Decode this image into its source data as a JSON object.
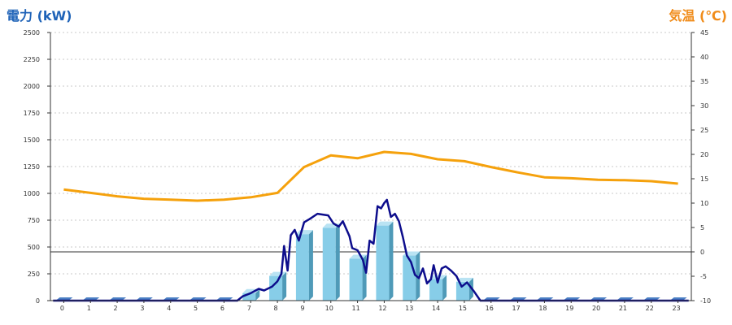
{
  "chart_data": {
    "type": "bar",
    "left_axis_title": "電力 (kW)",
    "right_axis_title": "気温 (℃)",
    "colors": {
      "left_title": "#1f63b8",
      "right_title": "#f08c1a",
      "bar_front": "#87cde8",
      "bar_side": "#4f9ab8",
      "bar_top": "#b9e3f3",
      "small_bar": "#4a7fc4",
      "power_line": "#0d0d8c",
      "temp_line": "#f5a10c",
      "grid": "#c8c8c8",
      "zero_line": "#333333"
    },
    "categories": [
      "0",
      "1",
      "2",
      "3",
      "4",
      "5",
      "6",
      "7",
      "8",
      "9",
      "10",
      "11",
      "12",
      "13",
      "14",
      "15",
      "16",
      "17",
      "18",
      "19",
      "20",
      "21",
      "22",
      "23"
    ],
    "y_left": {
      "min": 0,
      "max": 2500,
      "ticks": [
        "0",
        "250",
        "500",
        "750",
        "1000",
        "1250",
        "1500",
        "1750",
        "2000",
        "2250",
        "2500"
      ]
    },
    "y_right": {
      "min": -10,
      "max": 45,
      "ticks": [
        "-10",
        "-5",
        "0",
        "5",
        "10",
        "15",
        "20",
        "25",
        "30",
        "35",
        "40",
        "45"
      ]
    },
    "grid": true,
    "hourly_power_bars": [
      0,
      0,
      0,
      0,
      0,
      0,
      0,
      70,
      230,
      620,
      680,
      390,
      700,
      420,
      200,
      175,
      0,
      0,
      0,
      0,
      0,
      0,
      0,
      0
    ],
    "temperature_line": [
      {
        "x": 0,
        "y": 12.8
      },
      {
        "x": 1,
        "y": 12.1
      },
      {
        "x": 2,
        "y": 11.4
      },
      {
        "x": 3,
        "y": 10.9
      },
      {
        "x": 4,
        "y": 10.7
      },
      {
        "x": 5,
        "y": 10.5
      },
      {
        "x": 6,
        "y": 10.7
      },
      {
        "x": 7,
        "y": 11.2
      },
      {
        "x": 8,
        "y": 12.1
      },
      {
        "x": 9,
        "y": 17.4
      },
      {
        "x": 10,
        "y": 19.8
      },
      {
        "x": 11,
        "y": 19.2
      },
      {
        "x": 12,
        "y": 20.5
      },
      {
        "x": 13,
        "y": 20.1
      },
      {
        "x": 14,
        "y": 19.0
      },
      {
        "x": 15,
        "y": 18.6
      },
      {
        "x": 16,
        "y": 17.4
      },
      {
        "x": 17,
        "y": 16.3
      },
      {
        "x": 18,
        "y": 15.3
      },
      {
        "x": 19,
        "y": 15.1
      },
      {
        "x": 20,
        "y": 14.8
      },
      {
        "x": 21,
        "y": 14.7
      },
      {
        "x": 22,
        "y": 14.5
      },
      {
        "x": 23,
        "y": 14.0
      }
    ],
    "power_line": [
      {
        "x": -0.4,
        "y": 0
      },
      {
        "x": 6.5,
        "y": 0
      },
      {
        "x": 6.7,
        "y": 40
      },
      {
        "x": 7.0,
        "y": 70
      },
      {
        "x": 7.3,
        "y": 110
      },
      {
        "x": 7.5,
        "y": 95
      },
      {
        "x": 7.8,
        "y": 130
      },
      {
        "x": 8.0,
        "y": 180
      },
      {
        "x": 8.15,
        "y": 250
      },
      {
        "x": 8.25,
        "y": 510
      },
      {
        "x": 8.38,
        "y": 280
      },
      {
        "x": 8.5,
        "y": 610
      },
      {
        "x": 8.65,
        "y": 660
      },
      {
        "x": 8.8,
        "y": 560
      },
      {
        "x": 9.0,
        "y": 730
      },
      {
        "x": 9.2,
        "y": 760
      },
      {
        "x": 9.5,
        "y": 810
      },
      {
        "x": 9.9,
        "y": 795
      },
      {
        "x": 10.1,
        "y": 720
      },
      {
        "x": 10.3,
        "y": 690
      },
      {
        "x": 10.45,
        "y": 740
      },
      {
        "x": 10.7,
        "y": 600
      },
      {
        "x": 10.8,
        "y": 490
      },
      {
        "x": 11.0,
        "y": 470
      },
      {
        "x": 11.2,
        "y": 380
      },
      {
        "x": 11.32,
        "y": 260
      },
      {
        "x": 11.45,
        "y": 560
      },
      {
        "x": 11.6,
        "y": 530
      },
      {
        "x": 11.75,
        "y": 880
      },
      {
        "x": 11.88,
        "y": 860
      },
      {
        "x": 12.0,
        "y": 910
      },
      {
        "x": 12.1,
        "y": 940
      },
      {
        "x": 12.25,
        "y": 780
      },
      {
        "x": 12.4,
        "y": 810
      },
      {
        "x": 12.55,
        "y": 740
      },
      {
        "x": 12.7,
        "y": 590
      },
      {
        "x": 12.85,
        "y": 420
      },
      {
        "x": 13.0,
        "y": 360
      },
      {
        "x": 13.15,
        "y": 240
      },
      {
        "x": 13.3,
        "y": 210
      },
      {
        "x": 13.45,
        "y": 300
      },
      {
        "x": 13.6,
        "y": 160
      },
      {
        "x": 13.75,
        "y": 200
      },
      {
        "x": 13.85,
        "y": 330
      },
      {
        "x": 14.0,
        "y": 170
      },
      {
        "x": 14.15,
        "y": 300
      },
      {
        "x": 14.3,
        "y": 320
      },
      {
        "x": 14.5,
        "y": 280
      },
      {
        "x": 14.7,
        "y": 230
      },
      {
        "x": 14.9,
        "y": 130
      },
      {
        "x": 15.1,
        "y": 170
      },
      {
        "x": 15.35,
        "y": 90
      },
      {
        "x": 15.6,
        "y": 0
      },
      {
        "x": 23.4,
        "y": 0
      }
    ]
  }
}
